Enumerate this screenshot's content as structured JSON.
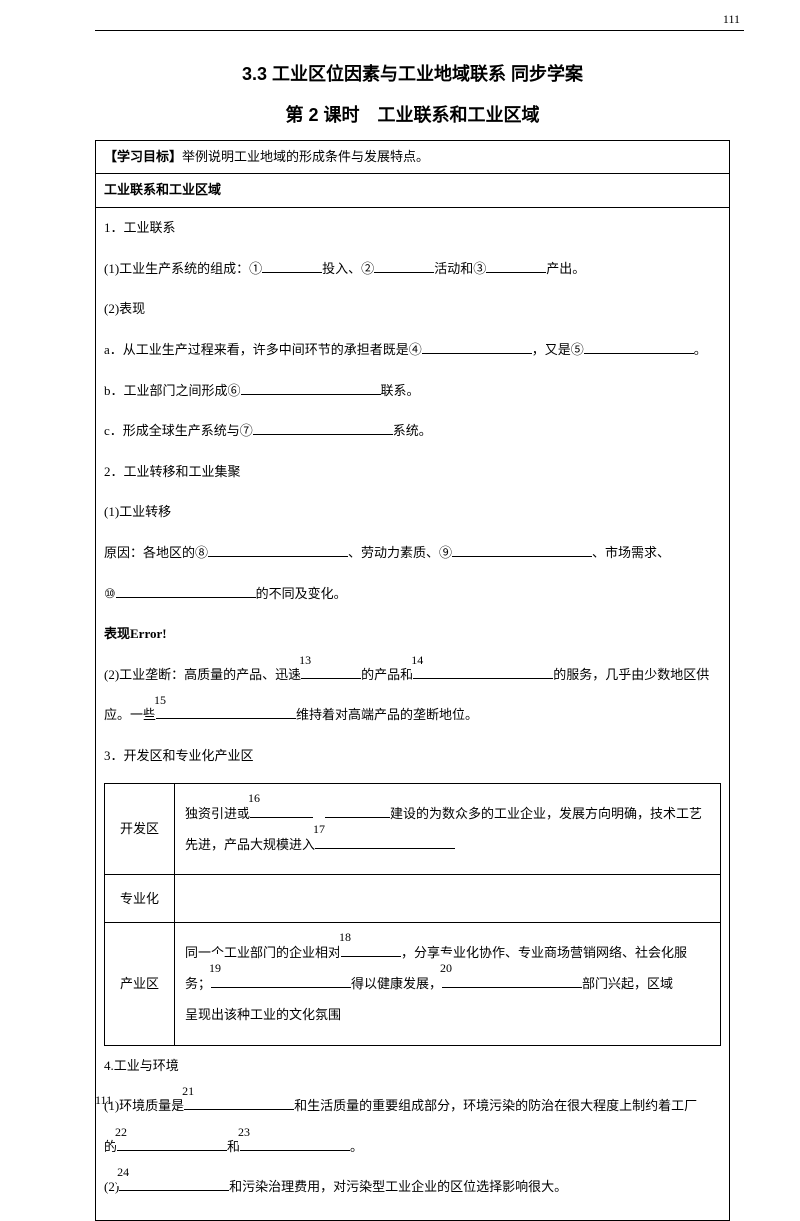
{
  "header_number": "111",
  "footer_number": "111",
  "title_main": "3.3 工业区位因素与工业地域联系 同步学案",
  "title_sub": "第 2 课时　工业联系和工业区域",
  "goal_label": "【学习目标】",
  "goal_text": "举例说明工业地域的形成条件与发展特点。",
  "section_header": "工业联系和工业区域",
  "s1": {
    "h": "1．工业联系",
    "l1a": "(1)工业生产系统的组成：①",
    "l1b": "投入、②",
    "l1c": "活动和③",
    "l1d": "产出。",
    "l2": "(2)表现",
    "la": "a．从工业生产过程来看，许多中间环节的承担者既是④",
    "la2": "，又是⑤",
    "la3": "。",
    "lb": "b．工业部门之间形成⑥",
    "lb2": "联系。",
    "lc": "c．形成全球生产系统与⑦",
    "lc2": "系统。"
  },
  "s2": {
    "h": "2．工业转移和工业集聚",
    "t1": "(1)工业转移",
    "r1": "原因：各地区的⑧",
    "r2": "、劳动力素质、⑨",
    "r3": "、市场需求、",
    "r4": "⑩",
    "r5": "的不同及变化。",
    "bx": "表现",
    "err": "Error!",
    "m1": "(2)工业垄断：高质量的产品、迅速",
    "m_num1": "13",
    "m2": "的产品和",
    "m_num2": "14",
    "m3": "的服务，几乎由少数地区供",
    "m4": "应。一些",
    "m_num3": "15",
    "m5": "维持着对高端产品的垄断地位。"
  },
  "s3": {
    "h": "3．开发区和专业化产业区",
    "table": {
      "r1_label": "开发区",
      "r1a": "独资引进或",
      "r1_n1": "16",
      "r1b": "建设的为数众多的工业企业，发展方向明确，技术工艺",
      "r1c": "先进，产品大规模进入",
      "r1_n2": "17",
      "r2_label": "专业化",
      "r3_label": "产业区",
      "r3a": "同一个工业部门的企业相对",
      "r3_n1": "18",
      "r3b": "，分享专业化协作、专业商场营销网络、社会化服",
      "r3c": "务；",
      "r3_n2": "19",
      "r3d": "得以健康发展，",
      "r3_n3": "20",
      "r3e": "部门兴起，区域",
      "r3f": "呈现出该种工业的文化氛围"
    }
  },
  "s4": {
    "h": "4.工业与环境",
    "l1a": "(1)环境质量是",
    "n1": "21",
    "l1b": "和生活质量的重要组成部分，环境污染的防治在很大程度上制约着工厂",
    "l2a": "的",
    "n2": "22",
    "l2b": "和",
    "n3": "23",
    "l2c": "。",
    "l3a": "(2)",
    "n4": "24",
    "l3b": "和污染治理费用，对污染型工业企业的区位选择影响很大。"
  }
}
